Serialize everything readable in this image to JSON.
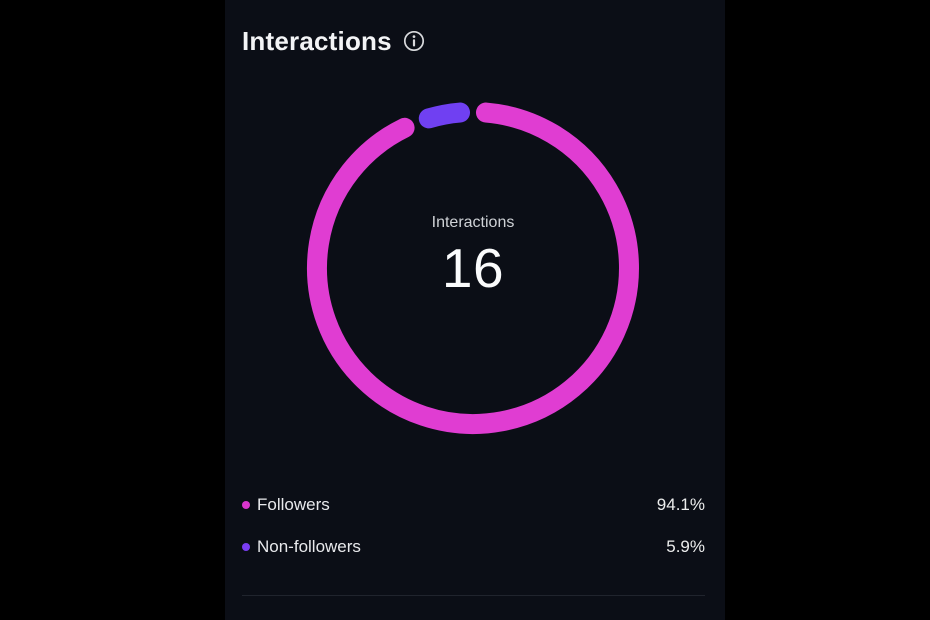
{
  "panel": {
    "title": "Interactions"
  },
  "donut": {
    "center_label": "Interactions",
    "center_value": "16"
  },
  "chart_data": {
    "type": "pie",
    "subtype": "donut",
    "title": "Interactions",
    "center_label": "Interactions",
    "center_value": 16,
    "legend_position": "bottom",
    "segments": [
      {
        "label": "Followers",
        "value": 94.1,
        "display": "94.1%",
        "color": "#e03dd2",
        "dot_color": "#d935cc"
      },
      {
        "label": "Non-followers",
        "value": 5.9,
        "display": "5.9%",
        "color": "#7040f2",
        "dot_color": "#7a3df2"
      }
    ],
    "colors": {
      "panel_background": "#0b0e16",
      "page_background": "#000000",
      "divider": "#20242d",
      "text_primary": "#f3f4f6",
      "text_secondary": "#cfd2d6"
    }
  }
}
